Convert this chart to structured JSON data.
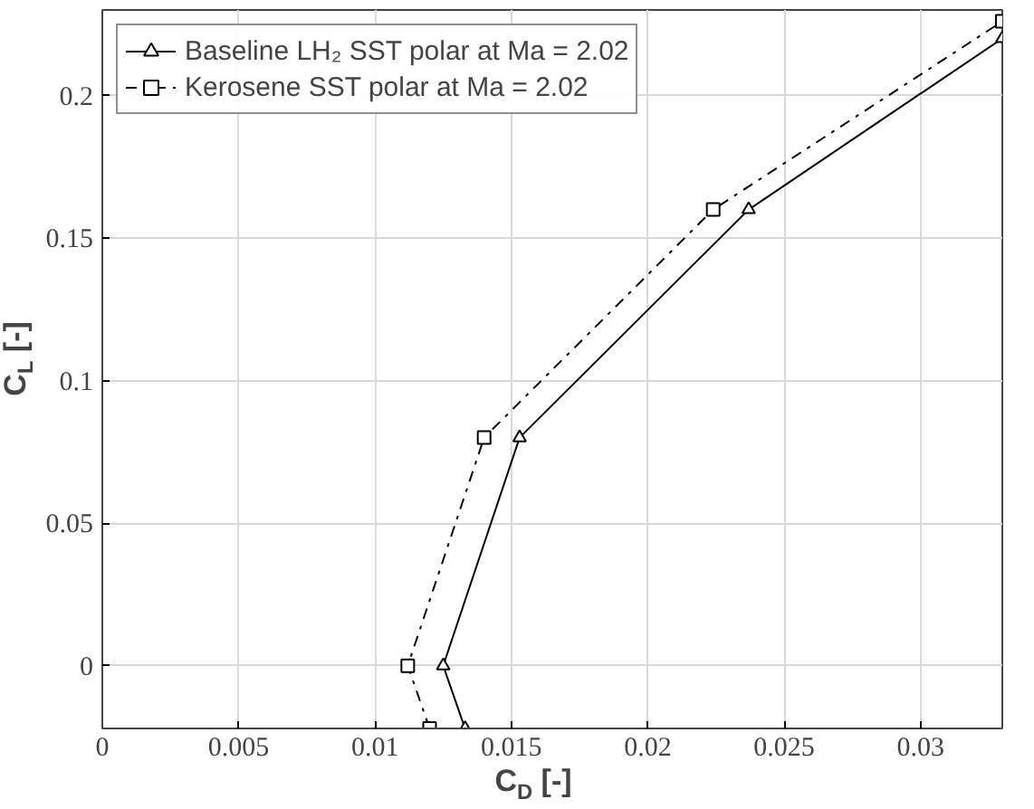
{
  "chart_data": {
    "type": "line",
    "xlabel": "C$_{D}$ [-]",
    "ylabel": "C$_{L}$ [-]",
    "series": [
      {
        "name": "Baseline LH₂ SST polar at Ma = 2.02",
        "color": "#000000",
        "marker": "triangle",
        "line_style": "solid",
        "x": [
          0.0133,
          0.0125,
          0.0153,
          0.0237,
          0.033
        ],
        "values": [
          -0.022,
          0,
          0.08,
          0.16,
          0.22
        ]
      },
      {
        "name": "Kerosene SST polar at Ma = 2.02",
        "color": "#000000",
        "marker": "square",
        "line_style": "dashdot",
        "x": [
          0.012,
          0.0112,
          0.014,
          0.0224,
          0.033
        ],
        "values": [
          -0.022,
          0,
          0.08,
          0.16,
          0.226
        ]
      }
    ],
    "xlim": [
      0,
      0.033
    ],
    "ylim": [
      -0.022,
      0.23
    ],
    "xticks": [
      0,
      0.005,
      0.01,
      0.015,
      0.02,
      0.025,
      0.03
    ],
    "yticks": [
      0,
      0.05,
      0.1,
      0.15,
      0.2
    ],
    "grid": true,
    "legend": "top left"
  }
}
